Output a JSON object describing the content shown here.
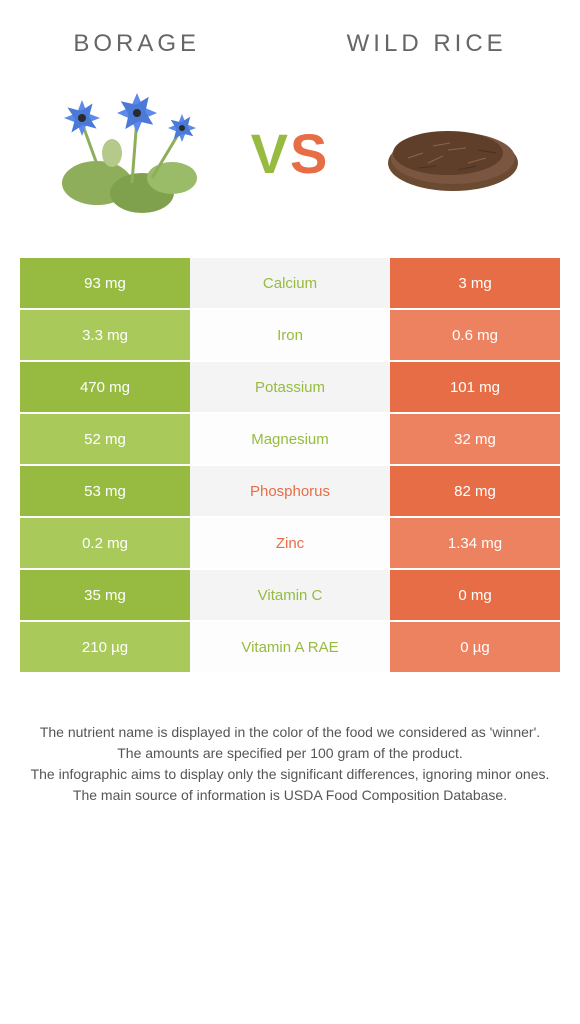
{
  "food1": {
    "name": "BORAGE"
  },
  "food2": {
    "name": "WILD RICE"
  },
  "vs": {
    "v": "V",
    "s": "S"
  },
  "colors": {
    "left_main": "#96bb40",
    "left_alt": "#a9c95a",
    "right_main": "#e76d46",
    "right_alt": "#ec8260",
    "mid_bg_a": "#f4f4f4",
    "mid_bg_b": "#fdfdfd",
    "text_gray": "#666666"
  },
  "rows": [
    {
      "left": "93 mg",
      "mid": "Calcium",
      "right": "3 mg",
      "winner": "left"
    },
    {
      "left": "3.3 mg",
      "mid": "Iron",
      "right": "0.6 mg",
      "winner": "left"
    },
    {
      "left": "470 mg",
      "mid": "Potassium",
      "right": "101 mg",
      "winner": "left"
    },
    {
      "left": "52 mg",
      "mid": "Magnesium",
      "right": "32 mg",
      "winner": "left"
    },
    {
      "left": "53 mg",
      "mid": "Phosphorus",
      "right": "82 mg",
      "winner": "right"
    },
    {
      "left": "0.2 mg",
      "mid": "Zinc",
      "right": "1.34 mg",
      "winner": "right"
    },
    {
      "left": "35 mg",
      "mid": "Vitamin C",
      "right": "0 mg",
      "winner": "left"
    },
    {
      "left": "210 µg",
      "mid": "Vitamin A RAE",
      "right": "0 µg",
      "winner": "left"
    }
  ],
  "footer": {
    "l1": "The nutrient name is displayed in the color of the food we considered as 'winner'.",
    "l2": "The amounts are specified per 100 gram of the product.",
    "l3": "The infographic aims to display only the significant differences, ignoring minor ones.",
    "l4": "The main source of information is USDA Food Composition Database."
  }
}
